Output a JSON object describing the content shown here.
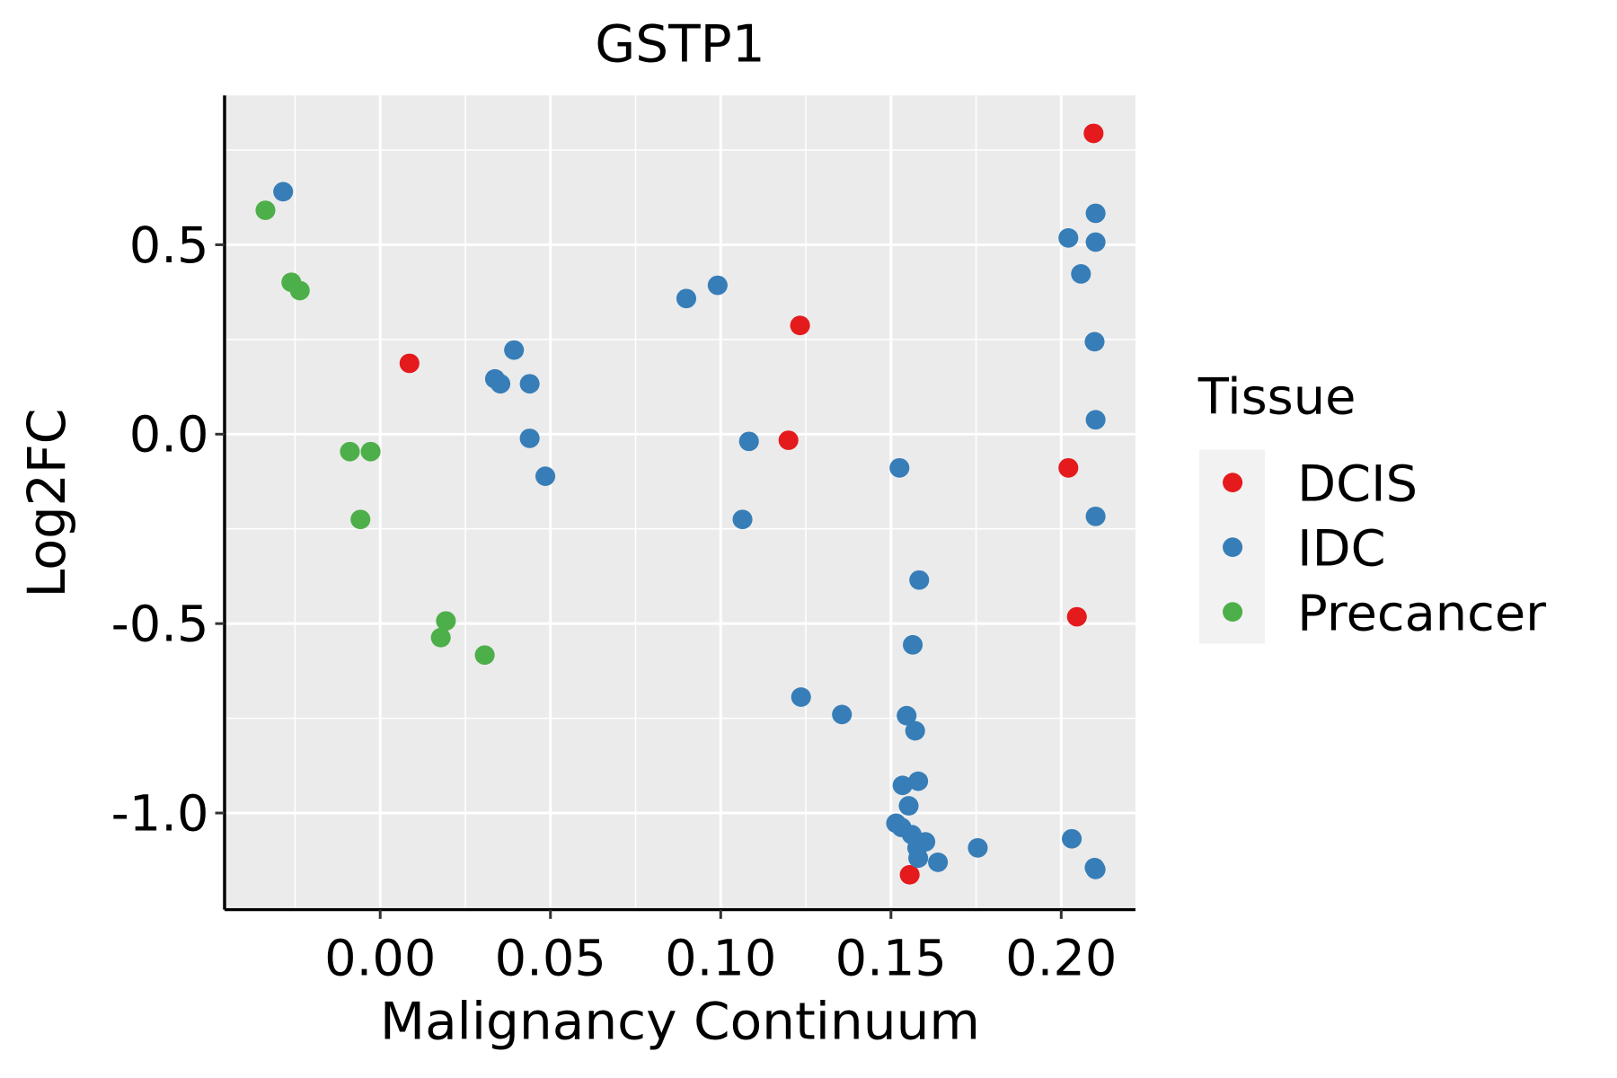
{
  "chart_data": {
    "type": "scatter",
    "title": "GSTP1",
    "xlabel": "Malignancy Continuum",
    "ylabel": "Log2FC",
    "xlim": [
      -0.0457,
      0.2218
    ],
    "ylim": [
      -1.255,
      0.894
    ],
    "xticks": [
      0.0,
      0.05,
      0.1,
      0.15,
      0.2
    ],
    "xtick_labels": [
      "0.00",
      "0.05",
      "0.10",
      "0.15",
      "0.20"
    ],
    "yticks": [
      0.5,
      0.0,
      -0.5,
      -1.0
    ],
    "ytick_labels": [
      "0.5",
      "0.0",
      "-0.5",
      "-1.0"
    ],
    "grid": true,
    "legend": {
      "title": "Tissue",
      "placement": "right"
    },
    "series": [
      {
        "name": "DCIS",
        "color": "#E41A1C",
        "points": [
          [
            0.2095,
            0.794
          ],
          [
            0.1233,
            0.287
          ],
          [
            0.0086,
            0.187
          ],
          [
            0.1199,
            -0.016
          ],
          [
            0.2021,
            -0.089
          ],
          [
            0.2046,
            -0.482
          ],
          [
            0.1555,
            -1.163
          ]
        ]
      },
      {
        "name": "IDC",
        "color": "#377EB8",
        "points": [
          [
            -0.0285,
            0.64
          ],
          [
            0.2101,
            0.583
          ],
          [
            0.2021,
            0.518
          ],
          [
            0.2101,
            0.507
          ],
          [
            0.2058,
            0.423
          ],
          [
            0.2098,
            0.244
          ],
          [
            0.2101,
            0.038
          ],
          [
            0.2101,
            -0.217
          ],
          [
            0.0899,
            0.358
          ],
          [
            0.0991,
            0.393
          ],
          [
            0.0393,
            0.222
          ],
          [
            0.0337,
            0.146
          ],
          [
            0.0353,
            0.133
          ],
          [
            0.0439,
            0.133
          ],
          [
            0.0439,
            -0.011
          ],
          [
            0.0485,
            -0.111
          ],
          [
            0.1083,
            -0.019
          ],
          [
            0.1064,
            -0.225
          ],
          [
            0.1525,
            -0.089
          ],
          [
            0.1583,
            -0.385
          ],
          [
            0.1564,
            -0.556
          ],
          [
            0.1236,
            -0.694
          ],
          [
            0.1356,
            -0.74
          ],
          [
            0.1546,
            -0.743
          ],
          [
            0.1571,
            -0.783
          ],
          [
            0.1534,
            -0.927
          ],
          [
            0.158,
            -0.916
          ],
          [
            0.1552,
            -0.981
          ],
          [
            0.1515,
            -1.027
          ],
          [
            0.1531,
            -1.038
          ],
          [
            0.1561,
            -1.057
          ],
          [
            0.1601,
            -1.076
          ],
          [
            0.1577,
            -1.092
          ],
          [
            0.158,
            -1.119
          ],
          [
            0.1638,
            -1.13
          ],
          [
            0.1755,
            -1.092
          ],
          [
            0.2031,
            -1.068
          ],
          [
            0.2098,
            -1.144
          ],
          [
            0.2101,
            -1.149
          ]
        ]
      },
      {
        "name": "Precancer",
        "color": "#4DAF4A",
        "points": [
          [
            -0.0337,
            0.591
          ],
          [
            -0.0261,
            0.401
          ],
          [
            -0.0236,
            0.379
          ],
          [
            -0.0089,
            -0.046
          ],
          [
            -0.0028,
            -0.046
          ],
          [
            -0.0058,
            -0.225
          ],
          [
            0.0193,
            -0.493
          ],
          [
            0.0178,
            -0.537
          ],
          [
            0.0307,
            -0.583
          ]
        ]
      }
    ]
  }
}
